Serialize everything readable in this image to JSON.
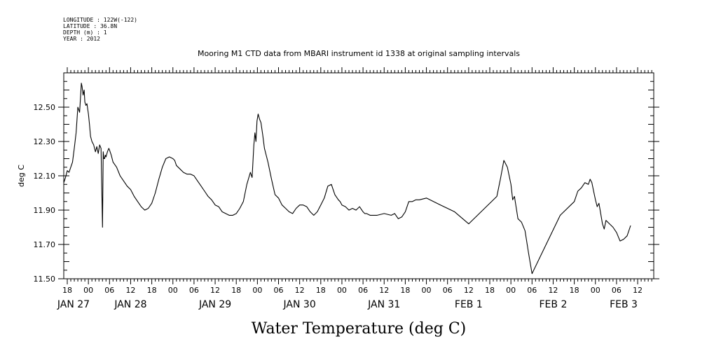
{
  "metadata": {
    "longitude": "LONGITUDE : 122W(-122)",
    "latitude": "LATITUDE : 36.8N",
    "depth": "DEPTH (m) : 1",
    "year": "YEAR : 2012"
  },
  "chart_data": {
    "type": "line",
    "title": "Mooring M1 CTD data from MBARI instrument id 1338 at original sampling intervals",
    "xlabel": "Water Temperature (deg C)",
    "ylabel": "deg C",
    "x_units": "hours since 2012-01-27 00:00",
    "xlim": [
      17,
      178
    ],
    "ylim": [
      11.5,
      12.7
    ],
    "y_ticks": [
      11.5,
      11.7,
      11.9,
      12.1,
      12.3,
      12.5
    ],
    "y_tick_labels": [
      "11.50",
      "11.70",
      "11.90",
      "12.10",
      "12.30",
      "12.50"
    ],
    "x_hour_ticks": [
      {
        "h": 18,
        "label": "18"
      },
      {
        "h": 24,
        "label": "00"
      },
      {
        "h": 30,
        "label": "06"
      },
      {
        "h": 36,
        "label": "12"
      },
      {
        "h": 42,
        "label": "18"
      },
      {
        "h": 48,
        "label": "00"
      },
      {
        "h": 54,
        "label": "06"
      },
      {
        "h": 60,
        "label": "12"
      },
      {
        "h": 66,
        "label": "18"
      },
      {
        "h": 72,
        "label": "00"
      },
      {
        "h": 78,
        "label": "06"
      },
      {
        "h": 84,
        "label": "12"
      },
      {
        "h": 90,
        "label": "18"
      },
      {
        "h": 96,
        "label": "00"
      },
      {
        "h": 102,
        "label": "06"
      },
      {
        "h": 108,
        "label": "12"
      },
      {
        "h": 114,
        "label": "18"
      },
      {
        "h": 120,
        "label": "00"
      },
      {
        "h": 126,
        "label": "06"
      },
      {
        "h": 132,
        "label": "12"
      },
      {
        "h": 138,
        "label": "18"
      },
      {
        "h": 144,
        "label": "00"
      },
      {
        "h": 150,
        "label": "06"
      },
      {
        "h": 156,
        "label": "12"
      },
      {
        "h": 162,
        "label": "18"
      },
      {
        "h": 168,
        "label": "00"
      },
      {
        "h": 174,
        "label": "06"
      },
      {
        "h": 180,
        "label": "12"
      }
    ],
    "x_day_labels": [
      {
        "h": 12,
        "label": "JAN 27"
      },
      {
        "h": 36,
        "label": "JAN 28"
      },
      {
        "h": 60,
        "label": "JAN 29"
      },
      {
        "h": 84,
        "label": "JAN 30"
      },
      {
        "h": 108,
        "label": "JAN 31"
      },
      {
        "h": 132,
        "label": "FEB  1"
      },
      {
        "h": 156,
        "label": "FEB  2"
      },
      {
        "h": 180,
        "label": "FEB  3"
      }
    ],
    "series": [
      {
        "color": "#000000",
        "x": [
          17,
          17.5,
          18,
          18.5,
          19,
          19.5,
          20,
          20.5,
          21,
          21.5,
          21.8,
          22,
          22.2,
          22.5,
          22.8,
          23,
          23.3,
          23.6,
          24,
          24.3,
          24.6,
          25,
          25.5,
          26,
          26.4,
          26.8,
          27.2,
          27.6,
          28,
          28.2,
          28.4,
          28.6,
          28.8,
          29,
          29.4,
          29.8,
          30,
          30.5,
          31,
          32,
          33,
          34,
          35,
          36,
          37,
          38,
          39,
          40,
          41,
          42,
          43,
          44,
          45,
          46,
          47,
          48,
          48.5,
          49,
          50,
          51,
          52,
          53,
          54,
          55,
          56,
          57,
          58,
          59,
          60,
          61,
          62,
          63,
          64,
          65,
          66,
          67,
          68,
          69,
          70,
          70.5,
          71,
          71.3,
          71.6,
          71.9,
          72.2,
          72.6,
          73,
          73.5,
          74,
          75,
          76,
          77,
          78,
          79,
          80,
          81,
          82,
          83,
          84,
          84.5,
          85,
          86,
          87,
          88,
          89,
          90,
          91,
          92,
          93,
          94,
          95,
          95.5,
          96,
          97,
          98,
          99,
          100,
          101,
          102,
          102.5,
          103,
          104,
          106,
          108,
          110,
          111,
          112,
          113,
          114,
          115,
          116,
          117,
          118,
          120,
          124,
          128,
          132,
          136,
          140,
          141,
          142,
          143,
          144,
          144.5,
          145,
          146,
          147,
          148,
          149,
          150,
          154,
          158,
          162,
          163,
          164,
          165,
          166,
          166.5,
          167,
          167.5,
          168,
          168.5,
          169,
          169.5,
          170,
          170.5,
          171,
          172,
          173,
          174,
          175,
          176,
          177,
          178
        ],
        "y": [
          12.06,
          12.09,
          12.13,
          12.12,
          12.15,
          12.18,
          12.26,
          12.35,
          12.5,
          12.47,
          12.57,
          12.64,
          12.62,
          12.57,
          12.6,
          12.53,
          12.51,
          12.52,
          12.46,
          12.4,
          12.33,
          12.3,
          12.28,
          12.24,
          12.27,
          12.23,
          12.28,
          12.26,
          11.8,
          12.24,
          12.2,
          12.2,
          12.22,
          12.21,
          12.24,
          12.26,
          12.25,
          12.22,
          12.18,
          12.15,
          12.1,
          12.07,
          12.04,
          12.02,
          11.98,
          11.95,
          11.92,
          11.9,
          11.91,
          11.94,
          12.0,
          12.08,
          12.15,
          12.2,
          12.21,
          12.2,
          12.19,
          12.16,
          12.14,
          12.12,
          12.11,
          12.11,
          12.1,
          12.07,
          12.04,
          12.01,
          11.98,
          11.96,
          11.93,
          11.92,
          11.89,
          11.88,
          11.87,
          11.87,
          11.88,
          11.91,
          11.95,
          12.05,
          12.12,
          12.09,
          12.28,
          12.35,
          12.3,
          12.42,
          12.46,
          12.43,
          12.41,
          12.34,
          12.26,
          12.18,
          12.08,
          11.99,
          11.97,
          11.93,
          11.91,
          11.89,
          11.88,
          11.91,
          11.93,
          11.93,
          11.93,
          11.92,
          11.89,
          11.87,
          11.89,
          11.93,
          11.97,
          12.04,
          12.05,
          11.99,
          11.96,
          11.95,
          11.93,
          11.92,
          11.9,
          11.91,
          11.9,
          11.92,
          11.89,
          11.88,
          11.88,
          11.87,
          11.87,
          11.88,
          11.87,
          11.88,
          11.85,
          11.86,
          11.89,
          11.95,
          11.95,
          11.96,
          11.96,
          11.97,
          11.93,
          11.89,
          11.82,
          11.9,
          11.98,
          12.08,
          12.19,
          12.15,
          12.05,
          11.96,
          11.98,
          11.85,
          11.83,
          11.78,
          11.65,
          11.53,
          11.7,
          11.87,
          11.95,
          12.01,
          12.03,
          12.06,
          12.05,
          12.08,
          12.06,
          12.01,
          11.96,
          11.92,
          11.94,
          11.88,
          11.82,
          11.79,
          11.84,
          11.82,
          11.8,
          11.77,
          11.72,
          11.73,
          11.75,
          11.81
        ]
      }
    ],
    "grid": false,
    "legend": "none"
  }
}
